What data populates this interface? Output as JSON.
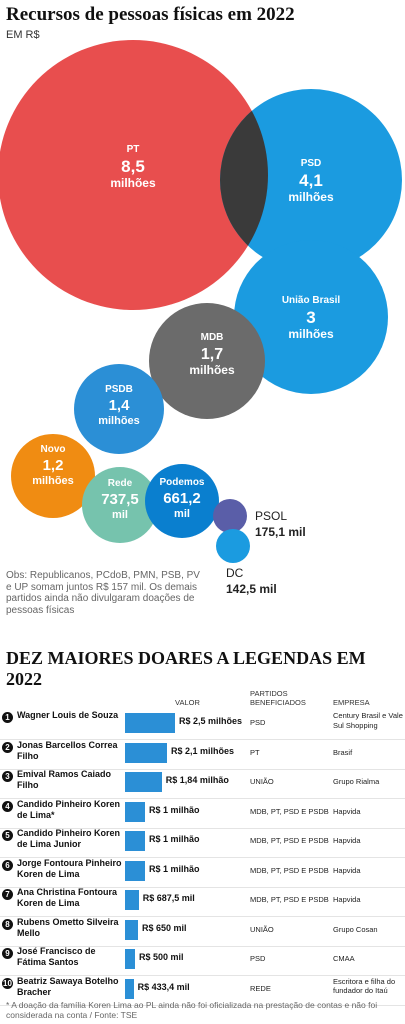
{
  "bubbles": {
    "title": "Recursos de pessoas físicas em 2022",
    "subtitle": "EM R$",
    "note": "Obs: Republicanos, PCdoB, PMN, PSB, PV e UP somam juntos R$ 157 mil. Os demais partidos ainda não divulgaram doações de pessoas físicas",
    "colors": {
      "PT": "#e84e4e",
      "PSD": "#1b9be0",
      "overlap": "#3a3a3a",
      "MDB": "#6b6b6b",
      "PSDB": "#2b8fd6",
      "Novo": "#f08c12",
      "Rede": "#76c3ad",
      "Podemos": "#0a7fcf",
      "PSOL": "#5a5ea8",
      "DC": "#1b9be0"
    }
  },
  "chart_data": [
    {
      "type": "bubble",
      "title": "Recursos de pessoas físicas em 2022",
      "subtitle": "EM R$",
      "series": [
        {
          "name": "PT",
          "value": 8500000,
          "label": "8,5",
          "unit": "milhões"
        },
        {
          "name": "PSD",
          "value": 4100000,
          "label": "4,1",
          "unit": "milhões"
        },
        {
          "name": "União Brasil",
          "value": 3000000,
          "label": "3",
          "unit": "milhões"
        },
        {
          "name": "MDB",
          "value": 1700000,
          "label": "1,7",
          "unit": "milhões"
        },
        {
          "name": "PSDB",
          "value": 1400000,
          "label": "1,4",
          "unit": "milhões"
        },
        {
          "name": "Novo",
          "value": 1200000,
          "label": "1,2",
          "unit": "milhões"
        },
        {
          "name": "Rede",
          "value": 737500,
          "label": "737,5",
          "unit": "mil"
        },
        {
          "name": "Podemos",
          "value": 661200,
          "label": "661,2",
          "unit": "mil"
        },
        {
          "name": "PSOL",
          "value": 175100,
          "label": "175,1 mil",
          "unit": ""
        },
        {
          "name": "DC",
          "value": 142500,
          "label": "142,5 mil",
          "unit": ""
        }
      ]
    },
    {
      "type": "bar",
      "title": "DEZ MAIORES DOARES A LEGENDAS EM 2022",
      "columns": {
        "value": "VALOR",
        "parties": "PARTIDOS BENEFICIADOS",
        "company": "EMPRESA"
      },
      "rows": [
        {
          "rank": "1",
          "name": "Wagner Louis de Souza",
          "value": 2500000,
          "value_label": "R$ 2,5 milhões",
          "parties": "PSD",
          "company": "Century Brasil e Vale Sul Shopping"
        },
        {
          "rank": "2",
          "name": "Jonas Barcellos Correa Filho",
          "value": 2100000,
          "value_label": "R$ 2,1 milhões",
          "parties": "PT",
          "company": "Brasif"
        },
        {
          "rank": "3",
          "name": "Emival Ramos Caiado Filho",
          "value": 1840000,
          "value_label": "R$ 1,84 milhão",
          "parties": "UNIÃO",
          "company": "Grupo Rialma"
        },
        {
          "rank": "4",
          "name": "Candido Pinheiro Koren de Lima*",
          "value": 1000000,
          "value_label": "R$ 1 milhão",
          "parties": "MDB, PT, PSD E PSDB",
          "company": "Hapvida"
        },
        {
          "rank": "5",
          "name": "Candido Pinheiro Koren de Lima Junior",
          "value": 1000000,
          "value_label": "R$ 1 milhão",
          "parties": "MDB, PT, PSD E PSDB",
          "company": "Hapvida"
        },
        {
          "rank": "6",
          "name": "Jorge Fontoura Pinheiro Koren de Lima",
          "value": 1000000,
          "value_label": "R$ 1 milhão",
          "parties": "MDB, PT, PSD E PSDB",
          "company": "Hapvida"
        },
        {
          "rank": "7",
          "name": "Ana Christina Fontoura Koren de Lima",
          "value": 687500,
          "value_label": "R$ 687,5 mil",
          "parties": "MDB, PT, PSD E PSDB",
          "company": "Hapvida"
        },
        {
          "rank": "8",
          "name": "Rubens Ometto Silveira Mello",
          "value": 650000,
          "value_label": "R$ 650 mil",
          "parties": "UNIÃO",
          "company": "Grupo Cosan"
        },
        {
          "rank": "9",
          "name": "José Francisco de Fátima Santos",
          "value": 500000,
          "value_label": "R$ 500 mil",
          "parties": "PSD",
          "company": "CMAA"
        },
        {
          "rank": "10",
          "name": "Beatriz Sawaya Botelho Bracher",
          "value": 433400,
          "value_label": "R$ 433,4 mil",
          "parties": "REDE",
          "company": "Escritora e filha do fundador do Itaú"
        }
      ],
      "footnote": "* A doação da família Koren Lima ao PL ainda não foi oficializada na prestação de contas e não foi considerada na conta / Fonte: TSE"
    }
  ],
  "table": {
    "title": "DEZ MAIORES DOARES A LEGENDAS EM 2022",
    "footnote": "* A doação da família Koren Lima ao PL ainda não foi oficializada na prestação de contas e não foi considerada na conta / Fonte: TSE",
    "bar_color": "#2b8fd6"
  }
}
